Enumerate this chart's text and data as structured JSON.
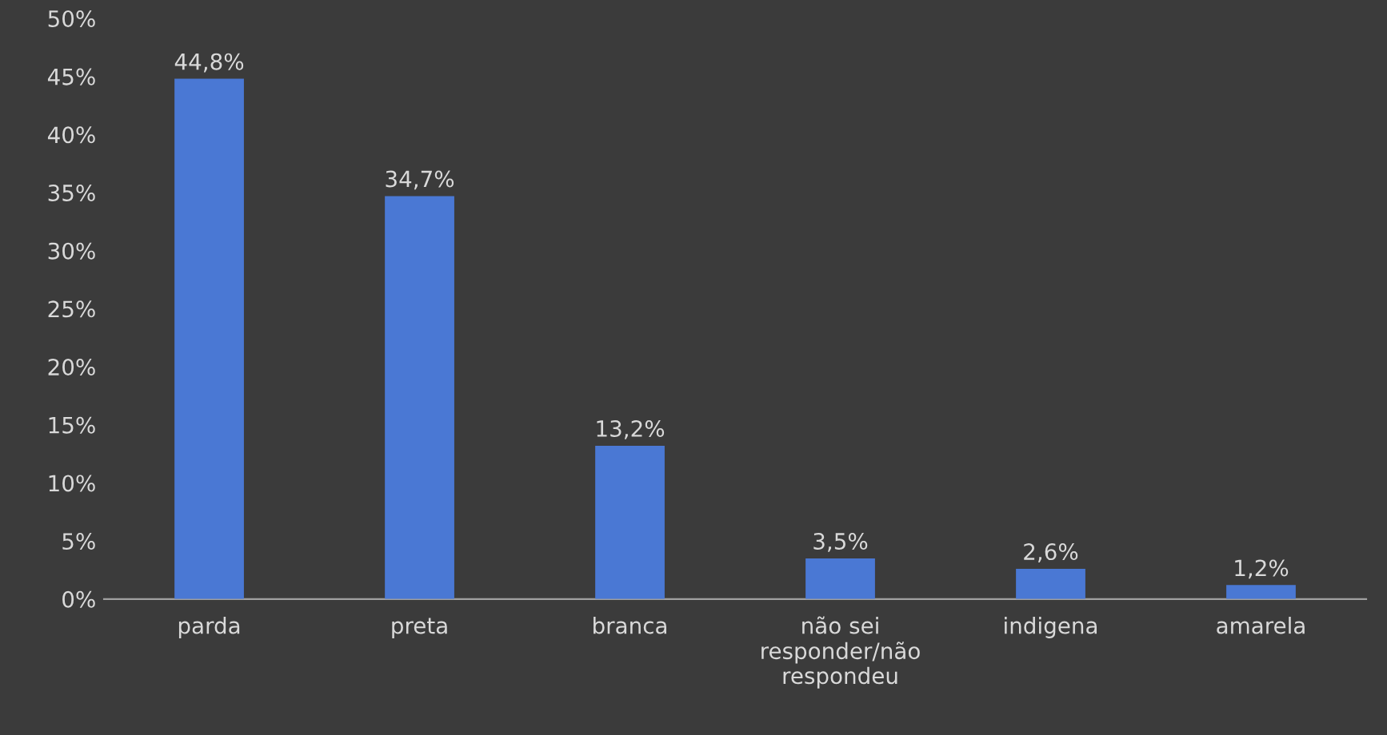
{
  "chart_data": {
    "type": "bar",
    "categories": [
      "parda",
      "preta",
      "branca",
      "não sei\nresponder/não\nrespondeu",
      "indigena",
      "amarela"
    ],
    "values": [
      44.8,
      34.7,
      13.2,
      3.5,
      2.6,
      1.2
    ],
    "value_labels": [
      "44,8%",
      "34,7%",
      "13,2%",
      "3,5%",
      "2,6%",
      "1,2%"
    ],
    "color": "#4a78d4",
    "ylim": [
      0,
      50
    ],
    "yticks": [
      {
        "value": 0,
        "label": "0%"
      },
      {
        "value": 5,
        "label": "5%"
      },
      {
        "value": 10,
        "label": "10%"
      },
      {
        "value": 15,
        "label": "15%"
      },
      {
        "value": 20,
        "label": "20%"
      },
      {
        "value": 25,
        "label": "25%"
      },
      {
        "value": 30,
        "label": "30%"
      },
      {
        "value": 35,
        "label": "35%"
      },
      {
        "value": 40,
        "label": "40%"
      },
      {
        "value": 45,
        "label": "45%"
      },
      {
        "value": 50,
        "label": "50%"
      }
    ],
    "grid": false,
    "legend": false
  }
}
